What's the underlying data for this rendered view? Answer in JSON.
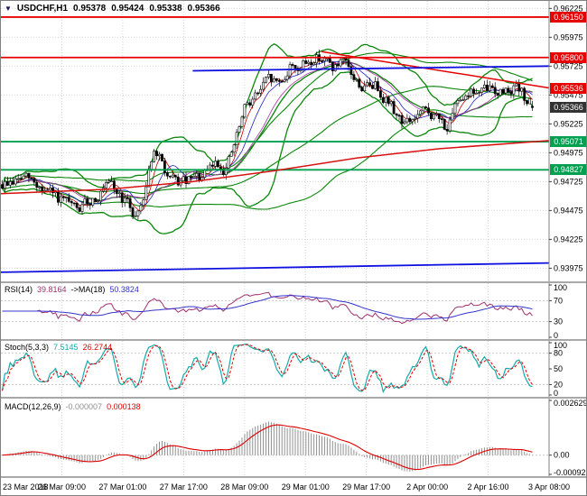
{
  "window": {
    "symbol_timeframe": "USDCHF,H1",
    "open": "0.95378",
    "high": "0.95424",
    "low": "0.95338",
    "close": "0.95366"
  },
  "icons": {
    "title_marker": "▼"
  },
  "colors": {
    "background": "#ffffff",
    "grid": "#d4d4d4",
    "axis_text": "#000000",
    "candle_up_fill": "#ffffff",
    "candle_down_fill": "#000000",
    "candle_outline": "#000000",
    "bollinger": "#0a870a",
    "ma_fast": "#c00000",
    "ma_mid": "#2020c8",
    "ma_slow": "#b030b0",
    "level_red": "#e60000",
    "level_green": "#00a050",
    "trend_blue": "#1010e0",
    "long_ma_red": "#d81010",
    "current_badge": "#323232",
    "rsi_line": "#a03070",
    "rsi_ma": "#3333cc",
    "stoch_k": "#17a9a9",
    "stoch_d": "#dd0000",
    "macd_hist": "#909090",
    "macd_signal": "#dd0000",
    "separator": "#a8a8a8"
  },
  "chart_data": {
    "type": "candlestick",
    "symbol": "USDCHF",
    "timeframe": "H1",
    "title_ohlc": [
      "0.95378",
      "0.95424",
      "0.95338",
      "0.95366"
    ],
    "n_candles": 200,
    "y_range": [
      0.93861,
      0.9629
    ],
    "y_ticks": [
      "0.96225",
      "0.95975",
      "0.95725",
      "0.95475",
      "0.95225",
      "0.94975",
      "0.94725",
      "0.94475",
      "0.94225",
      "0.93975"
    ],
    "x_labels": [
      "23 Mar 2018",
      "26 Mar 09:00",
      "27 Mar 01:00",
      "27 Mar 17:00",
      "28 Mar 09:00",
      "29 Mar 01:00",
      "29 Mar 17:00",
      "2 Apr 00:00",
      "2 Apr 16:00",
      "3 Apr 08:00"
    ],
    "price_waypoints": [
      [
        0.0,
        0.947
      ],
      [
        0.04,
        0.9476
      ],
      [
        0.08,
        0.9464
      ],
      [
        0.12,
        0.9451
      ],
      [
        0.14,
        0.9446
      ],
      [
        0.17,
        0.9459
      ],
      [
        0.2,
        0.9468
      ],
      [
        0.23,
        0.9455
      ],
      [
        0.25,
        0.9441
      ],
      [
        0.265,
        0.9462
      ],
      [
        0.28,
        0.9502
      ],
      [
        0.3,
        0.9486
      ],
      [
        0.315,
        0.947
      ],
      [
        0.35,
        0.9472
      ],
      [
        0.38,
        0.9476
      ],
      [
        0.4,
        0.949
      ],
      [
        0.42,
        0.9483
      ],
      [
        0.44,
        0.9512
      ],
      [
        0.46,
        0.9543
      ],
      [
        0.48,
        0.9549
      ],
      [
        0.5,
        0.9561
      ],
      [
        0.52,
        0.9557
      ],
      [
        0.545,
        0.9576
      ],
      [
        0.56,
        0.957
      ],
      [
        0.58,
        0.9578
      ],
      [
        0.6,
        0.9582
      ],
      [
        0.62,
        0.957
      ],
      [
        0.64,
        0.9574
      ],
      [
        0.66,
        0.9561
      ],
      [
        0.68,
        0.9552
      ],
      [
        0.7,
        0.9558
      ],
      [
        0.72,
        0.9546
      ],
      [
        0.74,
        0.9531
      ],
      [
        0.76,
        0.9522
      ],
      [
        0.78,
        0.9529
      ],
      [
        0.8,
        0.9533
      ],
      [
        0.82,
        0.9526
      ],
      [
        0.84,
        0.9518
      ],
      [
        0.85,
        0.9531
      ],
      [
        0.86,
        0.9549
      ],
      [
        0.88,
        0.9552
      ],
      [
        0.9,
        0.9548
      ],
      [
        0.92,
        0.9554
      ],
      [
        0.94,
        0.955
      ],
      [
        0.96,
        0.9556
      ],
      [
        0.98,
        0.9546
      ],
      [
        1.0,
        0.95366
      ]
    ],
    "levels": [
      {
        "price": 0.9615,
        "label": "0.96150",
        "color_key": "level_red"
      },
      {
        "price": 0.958,
        "label": "0.95800",
        "color_key": "level_red"
      },
      {
        "price": 0.95071,
        "label": "0.95071",
        "color_key": "level_green"
      },
      {
        "price": 0.94827,
        "label": "0.94827",
        "color_key": "level_green"
      }
    ],
    "trendlines": [
      {
        "points": [
          [
            0.585,
            0.9585
          ],
          [
            1.0,
            0.95536
          ]
        ],
        "color_key": "level_red",
        "width": 1.5,
        "label": "0.95536"
      },
      {
        "points": [
          [
            0.35,
            0.95685
          ],
          [
            1.0,
            0.95725
          ]
        ],
        "color_key": "trend_blue",
        "width": 1.8
      },
      {
        "points": [
          [
            0.0,
            0.9394
          ],
          [
            1.0,
            0.9402
          ]
        ],
        "color_key": "trend_blue",
        "width": 1.8
      },
      {
        "points": [
          [
            0.0,
            0.9462
          ],
          [
            0.2,
            0.9466
          ],
          [
            0.35,
            0.94725
          ],
          [
            0.5,
            0.9482
          ],
          [
            0.65,
            0.9493
          ],
          [
            0.8,
            0.9501
          ],
          [
            1.0,
            0.9508
          ]
        ],
        "color_key": "long_ma_red",
        "width": 1.5
      }
    ],
    "current_price": {
      "value": 0.95366,
      "label": "0.95366"
    },
    "indicators": {
      "bollinger": {
        "period": 20,
        "deviation": 2.2
      },
      "bollinger_slow": {
        "period": 72,
        "deviation": 1.15
      },
      "ma_fast_period": 5,
      "ma_mid_period": 10,
      "ma_slow_period": 18
    },
    "subpanels": [
      {
        "id": "rsi",
        "label_parts": [
          {
            "text": "RSI(14)",
            "color_key": "axis_text"
          },
          {
            "text": "39.8164",
            "color_key": "rsi_line"
          },
          {
            "text": "->MA(18)",
            "color_key": "axis_text"
          },
          {
            "text": "50.3824",
            "color_key": "rsi_ma"
          }
        ],
        "ticks": [
          {
            "label": "100",
            "value": 100
          },
          {
            "label": "70",
            "value": 70
          },
          {
            "label": "30",
            "value": 30
          },
          {
            "label": "0",
            "value": 0
          }
        ],
        "levels": [
          70,
          30
        ],
        "range": [
          0,
          100
        ],
        "params": {
          "period": 14,
          "ma_period": 18
        }
      },
      {
        "id": "stoch",
        "label_parts": [
          {
            "text": "Stoch(5,3,3)",
            "color_key": "axis_text"
          },
          {
            "text": "7.5145",
            "color_key": "stoch_k"
          },
          {
            "text": "26.2744",
            "color_key": "stoch_d"
          }
        ],
        "ticks": [
          {
            "label": "100",
            "value": 100
          },
          {
            "label": "80",
            "value": 80
          },
          {
            "label": "50",
            "value": 50
          },
          {
            "label": "20",
            "value": 20
          },
          {
            "label": "0",
            "value": 0
          }
        ],
        "levels": [
          80,
          20
        ],
        "range": [
          0,
          100
        ],
        "params": {
          "k": 5,
          "d": 3,
          "slowing": 3
        }
      },
      {
        "id": "macd",
        "label_parts": [
          {
            "text": "MACD(12,26,9)",
            "color_key": "axis_text"
          },
          {
            "text": "-0.000007",
            "color_key": "macd_hist"
          },
          {
            "text": "0.000138",
            "color_key": "macd_signal"
          }
        ],
        "ticks": [
          {
            "label": "0.002629",
            "value": 0.002629
          },
          {
            "label": "0.00",
            "value": 0
          },
          {
            "label": "-0.000923",
            "value": -0.000923
          }
        ],
        "range": [
          -0.000923,
          0.002629
        ],
        "params": {
          "fast": 12,
          "slow": 26,
          "signal": 9
        }
      }
    ]
  }
}
